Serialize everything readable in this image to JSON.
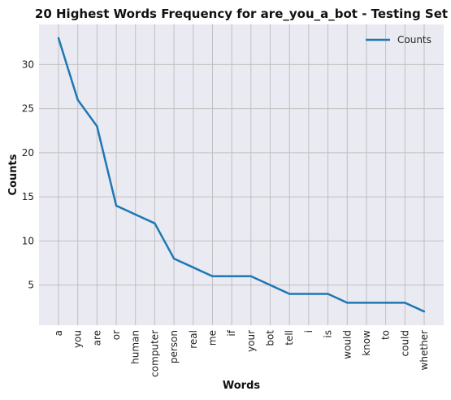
{
  "chart_data": {
    "type": "line",
    "title": "20 Highest Words Frequency for are_you_a_bot - Testing Set",
    "xlabel": "Words",
    "ylabel": "Counts",
    "categories": [
      "a",
      "you",
      "are",
      "or",
      "human",
      "computer",
      "person",
      "real",
      "me",
      "if",
      "your",
      "bot",
      "tell",
      "i",
      "is",
      "would",
      "know",
      "to",
      "could",
      "whether"
    ],
    "series": [
      {
        "name": "Counts",
        "values": [
          33,
          26,
          23,
          14,
          13,
          12,
          8,
          7,
          6,
          6,
          6,
          5,
          4,
          4,
          4,
          3,
          3,
          3,
          3,
          2
        ]
      }
    ],
    "yticks": [
      5,
      10,
      15,
      20,
      25,
      30
    ],
    "ylim": [
      0.45,
      34.55
    ],
    "grid": true,
    "legend_position": "top-right",
    "colors": {
      "line": "#1f77b4",
      "plot_background": "#eaeaf2",
      "grid": "#c0c0c0"
    }
  }
}
